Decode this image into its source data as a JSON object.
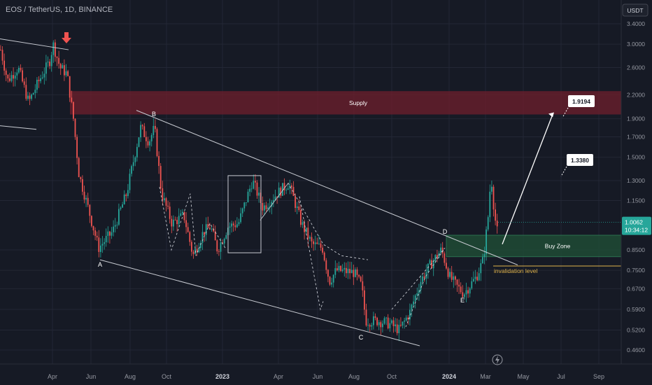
{
  "symbol_title": "EOS / TetherUS, 1D, BINANCE",
  "currency_button": "USDT",
  "current_price": "1.0062",
  "countdown": "10:34:12",
  "colors": {
    "background": "#161a25",
    "up": "#26a69a",
    "down": "#ef5350",
    "supply_zone": "#6b1f2b",
    "buy_zone": "#1f4b35",
    "invalidation": "#e0b34a",
    "pattern_line": "#c8cbd2",
    "price_tag": "#26a69a"
  },
  "annotations": {
    "supply_label": "Supply",
    "buy_zone_label": "Buy Zone",
    "invalidation_label": "invalidation level",
    "target_1": "1.9194",
    "target_2": "1.3380",
    "wave_a": "A",
    "wave_b": "B",
    "wave_c": "C",
    "wave_d": "D",
    "wave_e": "E"
  },
  "chart_data": {
    "type": "candlestick",
    "y_scale": "log",
    "ylim": [
      0.42,
      3.6
    ],
    "y_ticks": [
      "3.4000",
      "3.0000",
      "2.6000",
      "2.2000",
      "1.9000",
      "1.7000",
      "1.5000",
      "1.3000",
      "1.1500",
      "1.0062",
      "0.8500",
      "0.7500",
      "0.6700",
      "0.5900",
      "0.5200",
      "0.4600"
    ],
    "x_ticks": [
      "Apr",
      "Jun",
      "Aug",
      "Oct",
      "2023",
      "Apr",
      "Jun",
      "Aug",
      "Oct",
      "2024",
      "Mar",
      "May",
      "Jul",
      "Sep"
    ],
    "zones": [
      {
        "name": "Supply",
        "from": 1.95,
        "to": 2.25
      },
      {
        "name": "Buy Zone",
        "from": 0.815,
        "to": 0.93
      }
    ],
    "invalidation_level": 0.77,
    "targets": [
      1.9194,
      1.338
    ],
    "waves": [
      "A",
      "B",
      "C",
      "D",
      "E"
    ],
    "last_price": 1.0062
  }
}
